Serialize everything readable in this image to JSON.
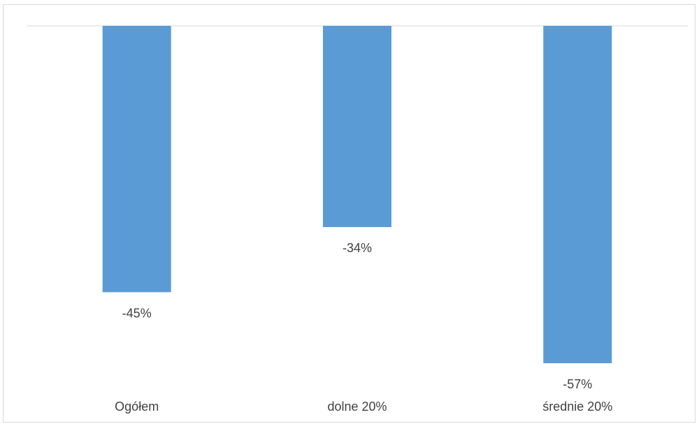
{
  "chart_data": {
    "type": "bar",
    "categories": [
      "Ogółem",
      "dolne 20%",
      "średnie 20%"
    ],
    "values": [
      -45,
      -34,
      -57
    ],
    "value_labels": [
      "-45%",
      "-34%",
      "-57%"
    ],
    "title": "",
    "xlabel": "",
    "ylabel": "",
    "ylim": [
      -57,
      0
    ],
    "grid": false,
    "legend": "none",
    "bar_color": "#5b9bd5",
    "axis_color": "#d9d9d9",
    "text_color": "#404040"
  }
}
